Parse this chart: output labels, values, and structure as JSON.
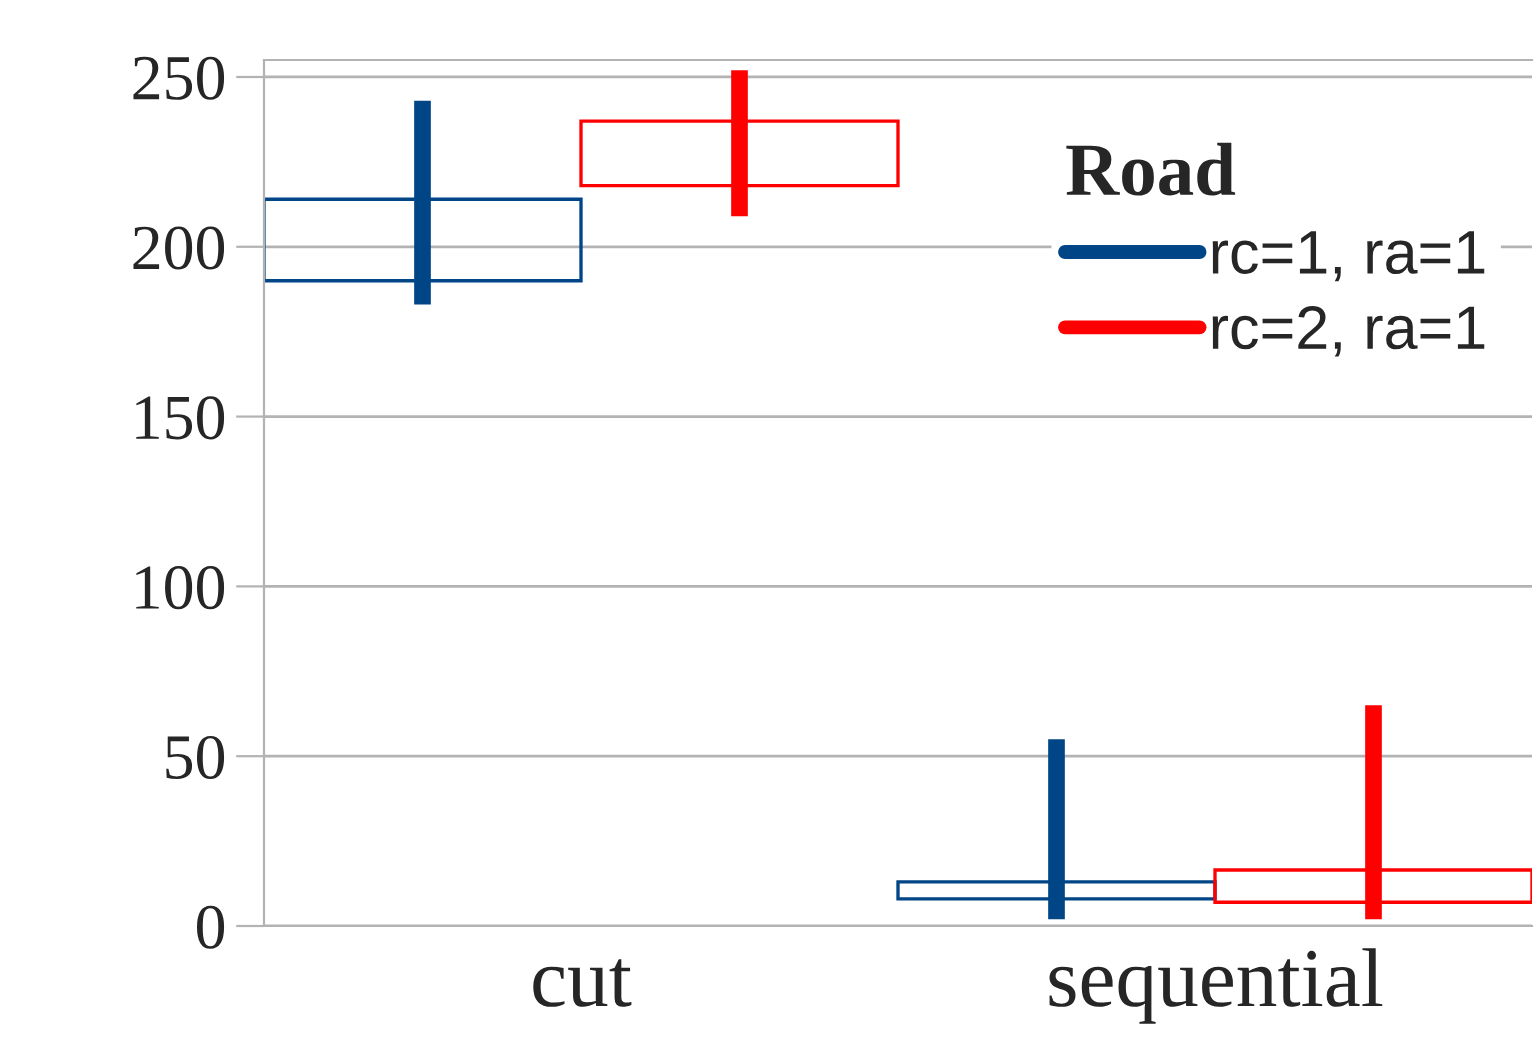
{
  "chart_data": {
    "type": "candlestick",
    "categories": [
      "cut",
      "sequential"
    ],
    "series": [
      {
        "name": "rc=1, ra=1",
        "color": "#004586",
        "ohlc": [
          [
            190,
            243,
            183,
            214
          ],
          [
            8,
            55,
            2,
            13
          ]
        ]
      },
      {
        "name": "rc=2, ra=1",
        "color": "#ff0000",
        "ohlc": [
          [
            218,
            252,
            209,
            237
          ],
          [
            7,
            65,
            2,
            16.5
          ]
        ]
      }
    ],
    "ylim": [
      0,
      255
    ],
    "yticks": [
      0,
      50,
      100,
      150,
      200,
      250
    ],
    "grid": "y",
    "legend": "top right",
    "legend_title": "Road"
  }
}
